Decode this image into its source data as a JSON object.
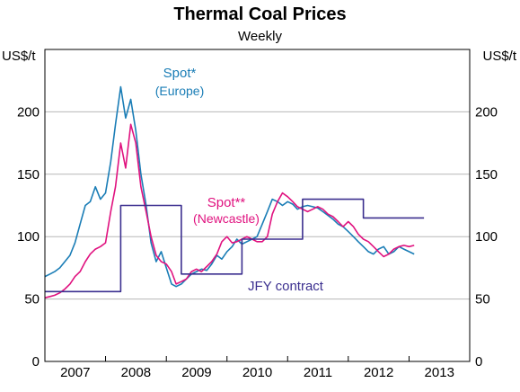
{
  "colors": {
    "europe": "#1a7db6",
    "newcastle": "#e0127f",
    "jfy": "#3b2f8f"
  },
  "chart_data": {
    "type": "line",
    "title": "Thermal Coal Prices",
    "subtitle": "Weekly",
    "ylabel_left": "US$/t",
    "ylabel_right": "US$/t",
    "ylim": [
      0,
      250
    ],
    "yticks": [
      0,
      50,
      100,
      150,
      200
    ],
    "xlim": [
      "2007-01-01",
      "2014-01-01"
    ],
    "xtick_labels": [
      "2007",
      "2008",
      "2009",
      "2010",
      "2011",
      "2012",
      "2013"
    ],
    "grid": true,
    "annotations": [
      {
        "id": "europe",
        "lines": [
          "Spot*",
          "(Europe)"
        ],
        "color": "europe"
      },
      {
        "id": "newcastle",
        "lines": [
          "Spot**",
          "(Newcastle)"
        ],
        "color": "newcastle"
      },
      {
        "id": "jfy",
        "lines": [
          "JFY contract"
        ],
        "color": "jfy"
      }
    ],
    "series": [
      {
        "name": "Spot* (Europe)",
        "color": "europe",
        "kind": "line",
        "points": [
          [
            "2007-01-01",
            68
          ],
          [
            "2007-02-01",
            70
          ],
          [
            "2007-03-01",
            72
          ],
          [
            "2007-04-01",
            75
          ],
          [
            "2007-05-01",
            80
          ],
          [
            "2007-06-01",
            85
          ],
          [
            "2007-07-01",
            95
          ],
          [
            "2007-08-01",
            110
          ],
          [
            "2007-09-01",
            125
          ],
          [
            "2007-10-01",
            128
          ],
          [
            "2007-11-01",
            140
          ],
          [
            "2007-12-01",
            130
          ],
          [
            "2008-01-01",
            135
          ],
          [
            "2008-02-01",
            160
          ],
          [
            "2008-03-01",
            190
          ],
          [
            "2008-04-01",
            220
          ],
          [
            "2008-05-01",
            195
          ],
          [
            "2008-06-01",
            210
          ],
          [
            "2008-07-01",
            185
          ],
          [
            "2008-08-01",
            150
          ],
          [
            "2008-09-01",
            125
          ],
          [
            "2008-10-01",
            95
          ],
          [
            "2008-11-01",
            80
          ],
          [
            "2008-12-01",
            88
          ],
          [
            "2009-01-01",
            75
          ],
          [
            "2009-02-01",
            62
          ],
          [
            "2009-03-01",
            60
          ],
          [
            "2009-04-01",
            62
          ],
          [
            "2009-05-01",
            66
          ],
          [
            "2009-06-01",
            70
          ],
          [
            "2009-07-01",
            72
          ],
          [
            "2009-08-01",
            74
          ],
          [
            "2009-09-01",
            73
          ],
          [
            "2009-10-01",
            78
          ],
          [
            "2009-11-01",
            85
          ],
          [
            "2009-12-01",
            82
          ],
          [
            "2010-01-01",
            88
          ],
          [
            "2010-02-01",
            92
          ],
          [
            "2010-03-01",
            98
          ],
          [
            "2010-04-01",
            94
          ],
          [
            "2010-05-01",
            96
          ],
          [
            "2010-06-01",
            98
          ],
          [
            "2010-07-01",
            100
          ],
          [
            "2010-08-01",
            110
          ],
          [
            "2010-09-01",
            120
          ],
          [
            "2010-10-01",
            130
          ],
          [
            "2010-11-01",
            128
          ],
          [
            "2010-12-01",
            125
          ],
          [
            "2011-01-01",
            128
          ],
          [
            "2011-02-01",
            126
          ],
          [
            "2011-03-01",
            122
          ],
          [
            "2011-04-01",
            124
          ],
          [
            "2011-05-01",
            125
          ],
          [
            "2011-06-01",
            124
          ],
          [
            "2011-07-01",
            123
          ],
          [
            "2011-08-01",
            120
          ],
          [
            "2011-09-01",
            117
          ],
          [
            "2011-10-01",
            114
          ],
          [
            "2011-11-01",
            110
          ],
          [
            "2011-12-01",
            108
          ],
          [
            "2012-01-01",
            104
          ],
          [
            "2012-02-01",
            100
          ],
          [
            "2012-03-01",
            96
          ],
          [
            "2012-04-01",
            92
          ],
          [
            "2012-05-01",
            88
          ],
          [
            "2012-06-01",
            86
          ],
          [
            "2012-07-01",
            90
          ],
          [
            "2012-08-01",
            92
          ],
          [
            "2012-09-01",
            86
          ],
          [
            "2012-10-01",
            88
          ],
          [
            "2012-11-01",
            92
          ],
          [
            "2012-12-01",
            90
          ],
          [
            "2013-01-01",
            88
          ],
          [
            "2013-02-01",
            86
          ]
        ]
      },
      {
        "name": "Spot** (Newcastle)",
        "color": "newcastle",
        "kind": "line",
        "points": [
          [
            "2007-01-01",
            51
          ],
          [
            "2007-02-01",
            52
          ],
          [
            "2007-03-01",
            53
          ],
          [
            "2007-04-01",
            55
          ],
          [
            "2007-05-01",
            58
          ],
          [
            "2007-06-01",
            62
          ],
          [
            "2007-07-01",
            68
          ],
          [
            "2007-08-01",
            72
          ],
          [
            "2007-09-01",
            80
          ],
          [
            "2007-10-01",
            86
          ],
          [
            "2007-11-01",
            90
          ],
          [
            "2007-12-01",
            92
          ],
          [
            "2008-01-01",
            95
          ],
          [
            "2008-02-01",
            120
          ],
          [
            "2008-03-01",
            140
          ],
          [
            "2008-04-01",
            175
          ],
          [
            "2008-05-01",
            155
          ],
          [
            "2008-06-01",
            190
          ],
          [
            "2008-07-01",
            175
          ],
          [
            "2008-08-01",
            140
          ],
          [
            "2008-09-01",
            120
          ],
          [
            "2008-10-01",
            100
          ],
          [
            "2008-11-01",
            85
          ],
          [
            "2008-12-01",
            80
          ],
          [
            "2009-01-01",
            78
          ],
          [
            "2009-02-01",
            72
          ],
          [
            "2009-03-01",
            62
          ],
          [
            "2009-04-01",
            64
          ],
          [
            "2009-05-01",
            66
          ],
          [
            "2009-06-01",
            72
          ],
          [
            "2009-07-01",
            74
          ],
          [
            "2009-08-01",
            72
          ],
          [
            "2009-09-01",
            76
          ],
          [
            "2009-10-01",
            80
          ],
          [
            "2009-11-01",
            86
          ],
          [
            "2009-12-01",
            96
          ],
          [
            "2010-01-01",
            100
          ],
          [
            "2010-02-01",
            95
          ],
          [
            "2010-03-01",
            96
          ],
          [
            "2010-04-01",
            98
          ],
          [
            "2010-05-01",
            100
          ],
          [
            "2010-06-01",
            98
          ],
          [
            "2010-07-01",
            96
          ],
          [
            "2010-08-01",
            96
          ],
          [
            "2010-09-01",
            100
          ],
          [
            "2010-10-01",
            118
          ],
          [
            "2010-11-01",
            128
          ],
          [
            "2010-12-01",
            135
          ],
          [
            "2011-01-01",
            132
          ],
          [
            "2011-02-01",
            128
          ],
          [
            "2011-03-01",
            124
          ],
          [
            "2011-04-01",
            122
          ],
          [
            "2011-05-01",
            120
          ],
          [
            "2011-06-01",
            122
          ],
          [
            "2011-07-01",
            124
          ],
          [
            "2011-08-01",
            122
          ],
          [
            "2011-09-01",
            118
          ],
          [
            "2011-10-01",
            116
          ],
          [
            "2011-11-01",
            112
          ],
          [
            "2011-12-01",
            108
          ],
          [
            "2012-01-01",
            112
          ],
          [
            "2012-02-01",
            108
          ],
          [
            "2012-03-01",
            102
          ],
          [
            "2012-04-01",
            98
          ],
          [
            "2012-05-01",
            96
          ],
          [
            "2012-06-01",
            92
          ],
          [
            "2012-07-01",
            88
          ],
          [
            "2012-08-01",
            84
          ],
          [
            "2012-09-01",
            86
          ],
          [
            "2012-10-01",
            90
          ],
          [
            "2012-11-01",
            92
          ],
          [
            "2012-12-01",
            93
          ],
          [
            "2013-01-01",
            92
          ],
          [
            "2013-02-01",
            93
          ]
        ]
      },
      {
        "name": "JFY contract",
        "color": "jfy",
        "kind": "step",
        "points": [
          [
            "2007-01-01",
            56
          ],
          [
            "2008-04-01",
            56
          ],
          [
            "2008-04-01",
            125
          ],
          [
            "2009-04-01",
            125
          ],
          [
            "2009-04-01",
            70
          ],
          [
            "2010-04-01",
            70
          ],
          [
            "2010-04-01",
            98
          ],
          [
            "2011-04-01",
            98
          ],
          [
            "2011-04-01",
            130
          ],
          [
            "2012-04-01",
            130
          ],
          [
            "2012-04-01",
            115
          ],
          [
            "2013-04-01",
            115
          ]
        ]
      }
    ]
  }
}
